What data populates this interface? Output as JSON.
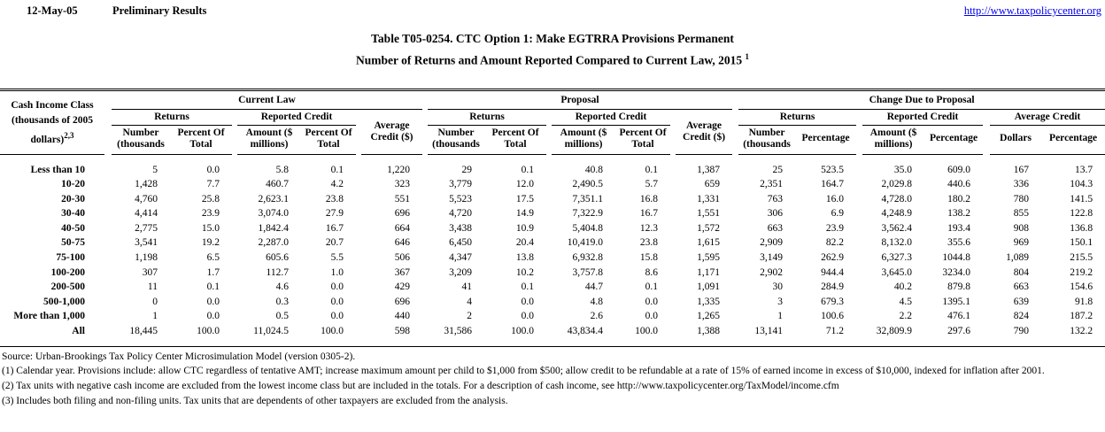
{
  "colors": {
    "link": "#0000EE"
  },
  "topbar": {
    "date": "12-May-05",
    "status": "Preliminary Results",
    "link": "http://www.taxpolicycenter.org"
  },
  "title": {
    "line1": "Table T05-0254. CTC Option 1: Make EGTRRA Provisions Permanent",
    "line2": "Number of Returns and Amount Reported Compared to Current Law, 2015",
    "sup": "1"
  },
  "table": {
    "head": {
      "income_class": {
        "l1": "Cash Income Class",
        "l2": "(thousands of 2005",
        "l3": "dollars)",
        "sup": "2,3"
      },
      "groups": {
        "current_law": "Current Law",
        "proposal": "Proposal",
        "change": "Change Due to Proposal"
      },
      "subgroups": {
        "returns": "Returns",
        "reported_credit": "Reported Credit",
        "average_credit": "Average Credit"
      },
      "avg_credit_cell": {
        "l1": "Average",
        "l2": "Credit ($)"
      },
      "leaf": {
        "number": {
          "l1": "Number",
          "l2": "(thousands"
        },
        "percent_of": {
          "l1": "Percent Of",
          "l2": "Total"
        },
        "amount": {
          "l1": "Amount ($",
          "l2": "millions)"
        },
        "percentage": "Percentage",
        "dollars": "Dollars"
      }
    },
    "rows": [
      {
        "label": "Less than 10",
        "values": [
          "5",
          "0.0",
          "5.8",
          "0.1",
          "1,220",
          "29",
          "0.1",
          "40.8",
          "0.1",
          "1,387",
          "25",
          "523.5",
          "35.0",
          "609.0",
          "167",
          "13.7"
        ]
      },
      {
        "label": "10-20",
        "values": [
          "1,428",
          "7.7",
          "460.7",
          "4.2",
          "323",
          "3,779",
          "12.0",
          "2,490.5",
          "5.7",
          "659",
          "2,351",
          "164.7",
          "2,029.8",
          "440.6",
          "336",
          "104.3"
        ]
      },
      {
        "label": "20-30",
        "values": [
          "4,760",
          "25.8",
          "2,623.1",
          "23.8",
          "551",
          "5,523",
          "17.5",
          "7,351.1",
          "16.8",
          "1,331",
          "763",
          "16.0",
          "4,728.0",
          "180.2",
          "780",
          "141.5"
        ]
      },
      {
        "label": "30-40",
        "values": [
          "4,414",
          "23.9",
          "3,074.0",
          "27.9",
          "696",
          "4,720",
          "14.9",
          "7,322.9",
          "16.7",
          "1,551",
          "306",
          "6.9",
          "4,248.9",
          "138.2",
          "855",
          "122.8"
        ]
      },
      {
        "label": "40-50",
        "values": [
          "2,775",
          "15.0",
          "1,842.4",
          "16.7",
          "664",
          "3,438",
          "10.9",
          "5,404.8",
          "12.3",
          "1,572",
          "663",
          "23.9",
          "3,562.4",
          "193.4",
          "908",
          "136.8"
        ]
      },
      {
        "label": "50-75",
        "values": [
          "3,541",
          "19.2",
          "2,287.0",
          "20.7",
          "646",
          "6,450",
          "20.4",
          "10,419.0",
          "23.8",
          "1,615",
          "2,909",
          "82.2",
          "8,132.0",
          "355.6",
          "969",
          "150.1"
        ]
      },
      {
        "label": "75-100",
        "values": [
          "1,198",
          "6.5",
          "605.6",
          "5.5",
          "506",
          "4,347",
          "13.8",
          "6,932.8",
          "15.8",
          "1,595",
          "3,149",
          "262.9",
          "6,327.3",
          "1044.8",
          "1,089",
          "215.5"
        ]
      },
      {
        "label": "100-200",
        "values": [
          "307",
          "1.7",
          "112.7",
          "1.0",
          "367",
          "3,209",
          "10.2",
          "3,757.8",
          "8.6",
          "1,171",
          "2,902",
          "944.4",
          "3,645.0",
          "3234.0",
          "804",
          "219.2"
        ]
      },
      {
        "label": "200-500",
        "values": [
          "11",
          "0.1",
          "4.6",
          "0.0",
          "429",
          "41",
          "0.1",
          "44.7",
          "0.1",
          "1,091",
          "30",
          "284.9",
          "40.2",
          "879.8",
          "663",
          "154.6"
        ]
      },
      {
        "label": "500-1,000",
        "values": [
          "0",
          "0.0",
          "0.3",
          "0.0",
          "696",
          "4",
          "0.0",
          "4.8",
          "0.0",
          "1,335",
          "3",
          "679.3",
          "4.5",
          "1395.1",
          "639",
          "91.8"
        ]
      },
      {
        "label": "More than 1,000",
        "values": [
          "1",
          "0.0",
          "0.5",
          "0.0",
          "440",
          "2",
          "0.0",
          "2.6",
          "0.0",
          "1,265",
          "1",
          "100.6",
          "2.2",
          "476.1",
          "824",
          "187.2"
        ]
      },
      {
        "label": "All",
        "values": [
          "18,445",
          "100.0",
          "11,024.5",
          "100.0",
          "598",
          "31,586",
          "100.0",
          "43,834.4",
          "100.0",
          "1,388",
          "13,141",
          "71.2",
          "32,809.9",
          "297.6",
          "790",
          "132.2"
        ]
      }
    ]
  },
  "footnotes": [
    "Source: Urban-Brookings Tax Policy Center Microsimulation Model (version 0305-2).",
    "(1) Calendar year. Provisions include: allow CTC regardless of tentative AMT; increase maximum amount per child to $1,000 from $500; allow credit to be refundable at a rate of 15% of earned income in excess of $10,000, indexed for inflation after 2001.",
    "(2) Tax units with negative cash income are excluded from the lowest income class but are included in the totals. For a description of cash income, see http://www.taxpolicycenter.org/TaxModel/income.cfm",
    "(3) Includes both filing and non-filing units.  Tax units that are dependents of other taxpayers are excluded from the analysis."
  ]
}
